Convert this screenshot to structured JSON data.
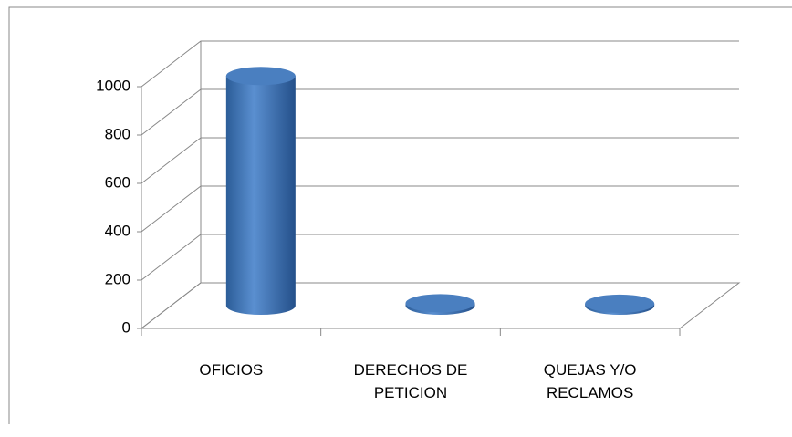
{
  "chart_data": {
    "type": "bar3d",
    "categories": [
      "OFICIOS",
      "DERECHOS DE PETICION",
      "QUEJAS Y/O RECLAMOS"
    ],
    "values": [
      950,
      10,
      8
    ],
    "color": "#4f81bd",
    "ylim": [
      0,
      1000
    ],
    "yticks": [
      0,
      200,
      400,
      600,
      800,
      1000
    ],
    "grid": true
  }
}
